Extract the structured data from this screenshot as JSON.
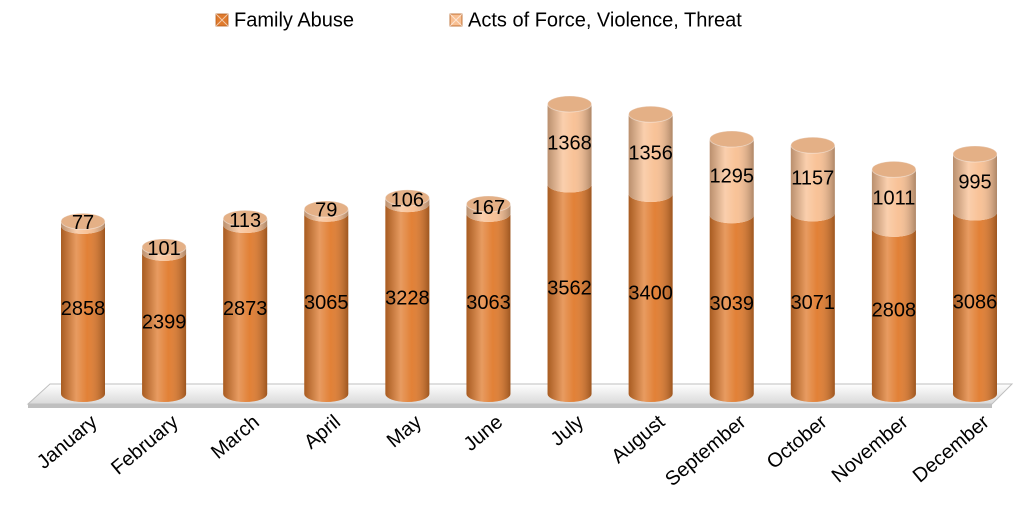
{
  "chart_data": {
    "type": "bar",
    "stacked": true,
    "categories": [
      "January",
      "February",
      "March",
      "April",
      "May",
      "June",
      "July",
      "August",
      "September",
      "October",
      "November",
      "December"
    ],
    "series": [
      {
        "name": "Family Abuse",
        "color": "#e07a2c",
        "values": [
          2858,
          2399,
          2873,
          3065,
          3228,
          3063,
          3562,
          3400,
          3039,
          3071,
          2808,
          3086
        ]
      },
      {
        "name": "Acts of Force, Violence, Threat",
        "color": "#f8bf92",
        "values": [
          77,
          101,
          113,
          79,
          106,
          167,
          1368,
          1356,
          1295,
          1157,
          1011,
          995
        ]
      }
    ]
  }
}
